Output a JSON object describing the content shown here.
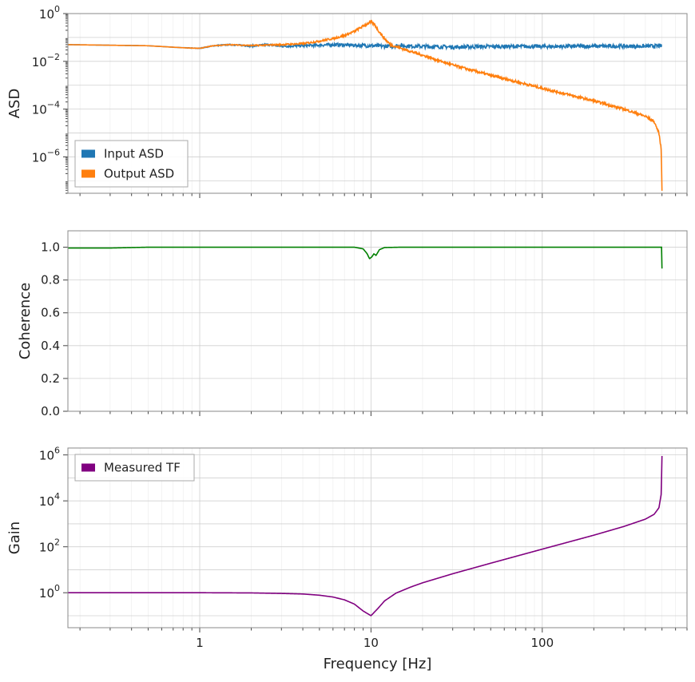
{
  "chart_data": [
    {
      "type": "line",
      "panel": "asd",
      "ylabel": "ASD",
      "xlabel": "",
      "xscale": "log",
      "yscale": "log",
      "xlim": [
        0.17,
        700
      ],
      "ylim": [
        3e-08,
        1
      ],
      "yticks": [
        {
          "value": 1,
          "base": "10",
          "exp": "0"
        },
        {
          "value": 0.01,
          "base": "10",
          "exp": "−2"
        },
        {
          "value": 0.0001,
          "base": "10",
          "exp": "−4"
        },
        {
          "value": 1e-06,
          "base": "10",
          "exp": "−6"
        }
      ],
      "grid": true,
      "legend_position": "lower-left",
      "series": [
        {
          "name": "Input ASD",
          "color": "#1f77b4",
          "noise": 0.18,
          "points": [
            [
              0.17,
              0.05
            ],
            [
              0.5,
              0.045
            ],
            [
              0.8,
              0.037
            ],
            [
              1,
              0.035
            ],
            [
              1.2,
              0.045
            ],
            [
              1.5,
              0.05
            ],
            [
              2,
              0.044
            ],
            [
              2.5,
              0.05
            ],
            [
              3,
              0.043
            ],
            [
              4,
              0.045
            ],
            [
              6,
              0.05
            ],
            [
              8,
              0.047
            ],
            [
              10,
              0.045
            ],
            [
              12,
              0.043
            ],
            [
              15,
              0.045
            ],
            [
              20,
              0.042
            ],
            [
              30,
              0.04
            ],
            [
              50,
              0.042
            ],
            [
              100,
              0.042
            ],
            [
              200,
              0.043
            ],
            [
              400,
              0.043
            ],
            [
              500,
              0.044
            ]
          ]
        },
        {
          "name": "Output ASD",
          "color": "#ff7f0e",
          "noise": 0.12,
          "points": [
            [
              0.17,
              0.05
            ],
            [
              0.5,
              0.045
            ],
            [
              0.8,
              0.037
            ],
            [
              1,
              0.035
            ],
            [
              1.2,
              0.045
            ],
            [
              1.5,
              0.05
            ],
            [
              2,
              0.046
            ],
            [
              3,
              0.05
            ],
            [
              4,
              0.055
            ],
            [
              5,
              0.07
            ],
            [
              6,
              0.09
            ],
            [
              7,
              0.12
            ],
            [
              8,
              0.18
            ],
            [
              9,
              0.3
            ],
            [
              10,
              0.45
            ],
            [
              10.5,
              0.35
            ],
            [
              11,
              0.2
            ],
            [
              12,
              0.09
            ],
            [
              13,
              0.05
            ],
            [
              15,
              0.035
            ],
            [
              20,
              0.018
            ],
            [
              30,
              0.007
            ],
            [
              50,
              0.0026
            ],
            [
              100,
              0.00075
            ],
            [
              200,
              0.00022
            ],
            [
              300,
              0.0001
            ],
            [
              400,
              5e-05
            ],
            [
              450,
              3e-05
            ],
            [
              480,
              1e-05
            ],
            [
              495,
              2e-06
            ],
            [
              500,
              4e-08
            ]
          ]
        }
      ]
    },
    {
      "type": "line",
      "panel": "coherence",
      "ylabel": "Coherence",
      "xlabel": "",
      "xscale": "log",
      "yscale": "linear",
      "xlim": [
        0.17,
        700
      ],
      "ylim": [
        0,
        1.1
      ],
      "yticks": [
        "0.0",
        "0.2",
        "0.4",
        "0.6",
        "0.8",
        "1.0"
      ],
      "grid": true,
      "series": [
        {
          "name": "",
          "color": "#008000",
          "points": [
            [
              0.17,
              0.995
            ],
            [
              0.3,
              0.995
            ],
            [
              0.5,
              1.0
            ],
            [
              8,
              1.0
            ],
            [
              9,
              0.99
            ],
            [
              9.5,
              0.96
            ],
            [
              9.8,
              0.93
            ],
            [
              10.1,
              0.94
            ],
            [
              10.4,
              0.96
            ],
            [
              10.7,
              0.95
            ],
            [
              11.2,
              0.985
            ],
            [
              12,
              0.998
            ],
            [
              15,
              1.0
            ],
            [
              498,
              1.0
            ],
            [
              500,
              0.87
            ]
          ]
        }
      ]
    },
    {
      "type": "line",
      "panel": "gain",
      "ylabel": "Gain",
      "xlabel": "Frequency [Hz]",
      "xscale": "log",
      "yscale": "log",
      "xlim": [
        0.17,
        700
      ],
      "ylim": [
        0.03,
        2000000
      ],
      "xticks": [
        "1",
        "10",
        "100"
      ],
      "yticks": [
        {
          "value": 1000000,
          "base": "10",
          "exp": "6"
        },
        {
          "value": 10000,
          "base": "10",
          "exp": "4"
        },
        {
          "value": 100,
          "base": "10",
          "exp": "2"
        },
        {
          "value": 1,
          "base": "10",
          "exp": "0"
        }
      ],
      "grid": true,
      "legend_position": "upper-left",
      "series": [
        {
          "name": "Measured TF",
          "color": "#800080",
          "points": [
            [
              0.17,
              1.0
            ],
            [
              1,
              1.0
            ],
            [
              2,
              0.98
            ],
            [
              3,
              0.93
            ],
            [
              4,
              0.88
            ],
            [
              5,
              0.78
            ],
            [
              6,
              0.65
            ],
            [
              7,
              0.49
            ],
            [
              8,
              0.32
            ],
            [
              9,
              0.16
            ],
            [
              10,
              0.1
            ],
            [
              11,
              0.21
            ],
            [
              12,
              0.44
            ],
            [
              14,
              0.96
            ],
            [
              17,
              1.75
            ],
            [
              20,
              2.7
            ],
            [
              30,
              6.7
            ],
            [
              50,
              19.3
            ],
            [
              100,
              79
            ],
            [
              200,
              320
            ],
            [
              300,
              770
            ],
            [
              400,
              1600
            ],
            [
              450,
              2600
            ],
            [
              480,
              5000
            ],
            [
              495,
              20000
            ],
            [
              500,
              900000
            ]
          ]
        }
      ]
    }
  ]
}
